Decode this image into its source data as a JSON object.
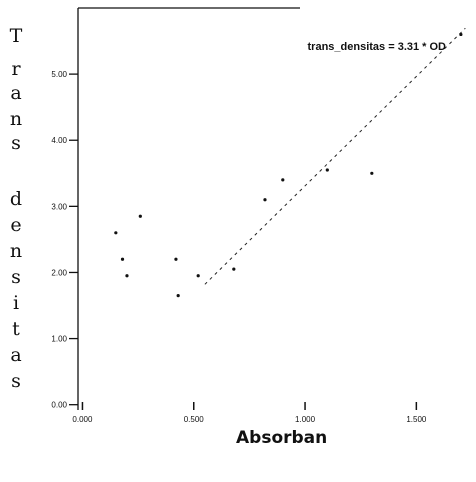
{
  "chart_data": {
    "type": "scatter",
    "title": "",
    "xlabel": "Absorban",
    "ylabel": "Trans densitas",
    "annotation": "trans_densitas = 3.31 * OD",
    "x_ticks": [
      "0.000",
      "0.500",
      "1.000",
      "1.500"
    ],
    "y_ticks": [
      "0.00",
      "1.00",
      "2.00",
      "3.00",
      "4.00",
      "5.00"
    ],
    "xlim": [
      -0.02,
      1.75
    ],
    "ylim": [
      -0.05,
      6.0
    ],
    "grid": false,
    "points": [
      {
        "x": 0.15,
        "y": 2.6
      },
      {
        "x": 0.18,
        "y": 2.2
      },
      {
        "x": 0.2,
        "y": 1.95
      },
      {
        "x": 0.26,
        "y": 2.85
      },
      {
        "x": 0.42,
        "y": 2.2
      },
      {
        "x": 0.43,
        "y": 1.65
      },
      {
        "x": 0.52,
        "y": 1.95
      },
      {
        "x": 0.68,
        "y": 2.05
      },
      {
        "x": 0.82,
        "y": 3.1
      },
      {
        "x": 0.9,
        "y": 3.4
      },
      {
        "x": 1.1,
        "y": 3.55
      },
      {
        "x": 1.3,
        "y": 3.5
      },
      {
        "x": 1.7,
        "y": 5.6
      }
    ],
    "regression": {
      "slope": 3.31,
      "intercept": 0
    }
  }
}
